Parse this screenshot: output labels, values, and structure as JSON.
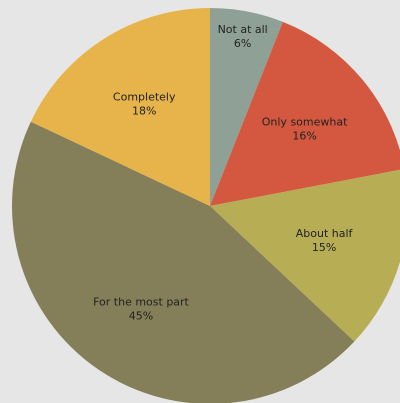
{
  "chart_data": {
    "type": "pie",
    "title": "",
    "start": "12 o'clock",
    "direction": "clockwise",
    "slices": [
      {
        "label": "Not at all",
        "value": 6,
        "value_label": "6%",
        "color": "#8fa096"
      },
      {
        "label": "Only somewhat",
        "value": 16,
        "value_label": "16%",
        "color": "#d3583f"
      },
      {
        "label": "About half",
        "value": 15,
        "value_label": "15%",
        "color": "#b7ad55"
      },
      {
        "label": "For the most part",
        "value": 45,
        "value_label": "45%",
        "color": "#847f58"
      },
      {
        "label": "Completely",
        "value": 18,
        "value_label": "18%",
        "color": "#e6b44a"
      }
    ]
  },
  "colors": {
    "background": "#e6e6e6",
    "label_text": "#222222"
  }
}
